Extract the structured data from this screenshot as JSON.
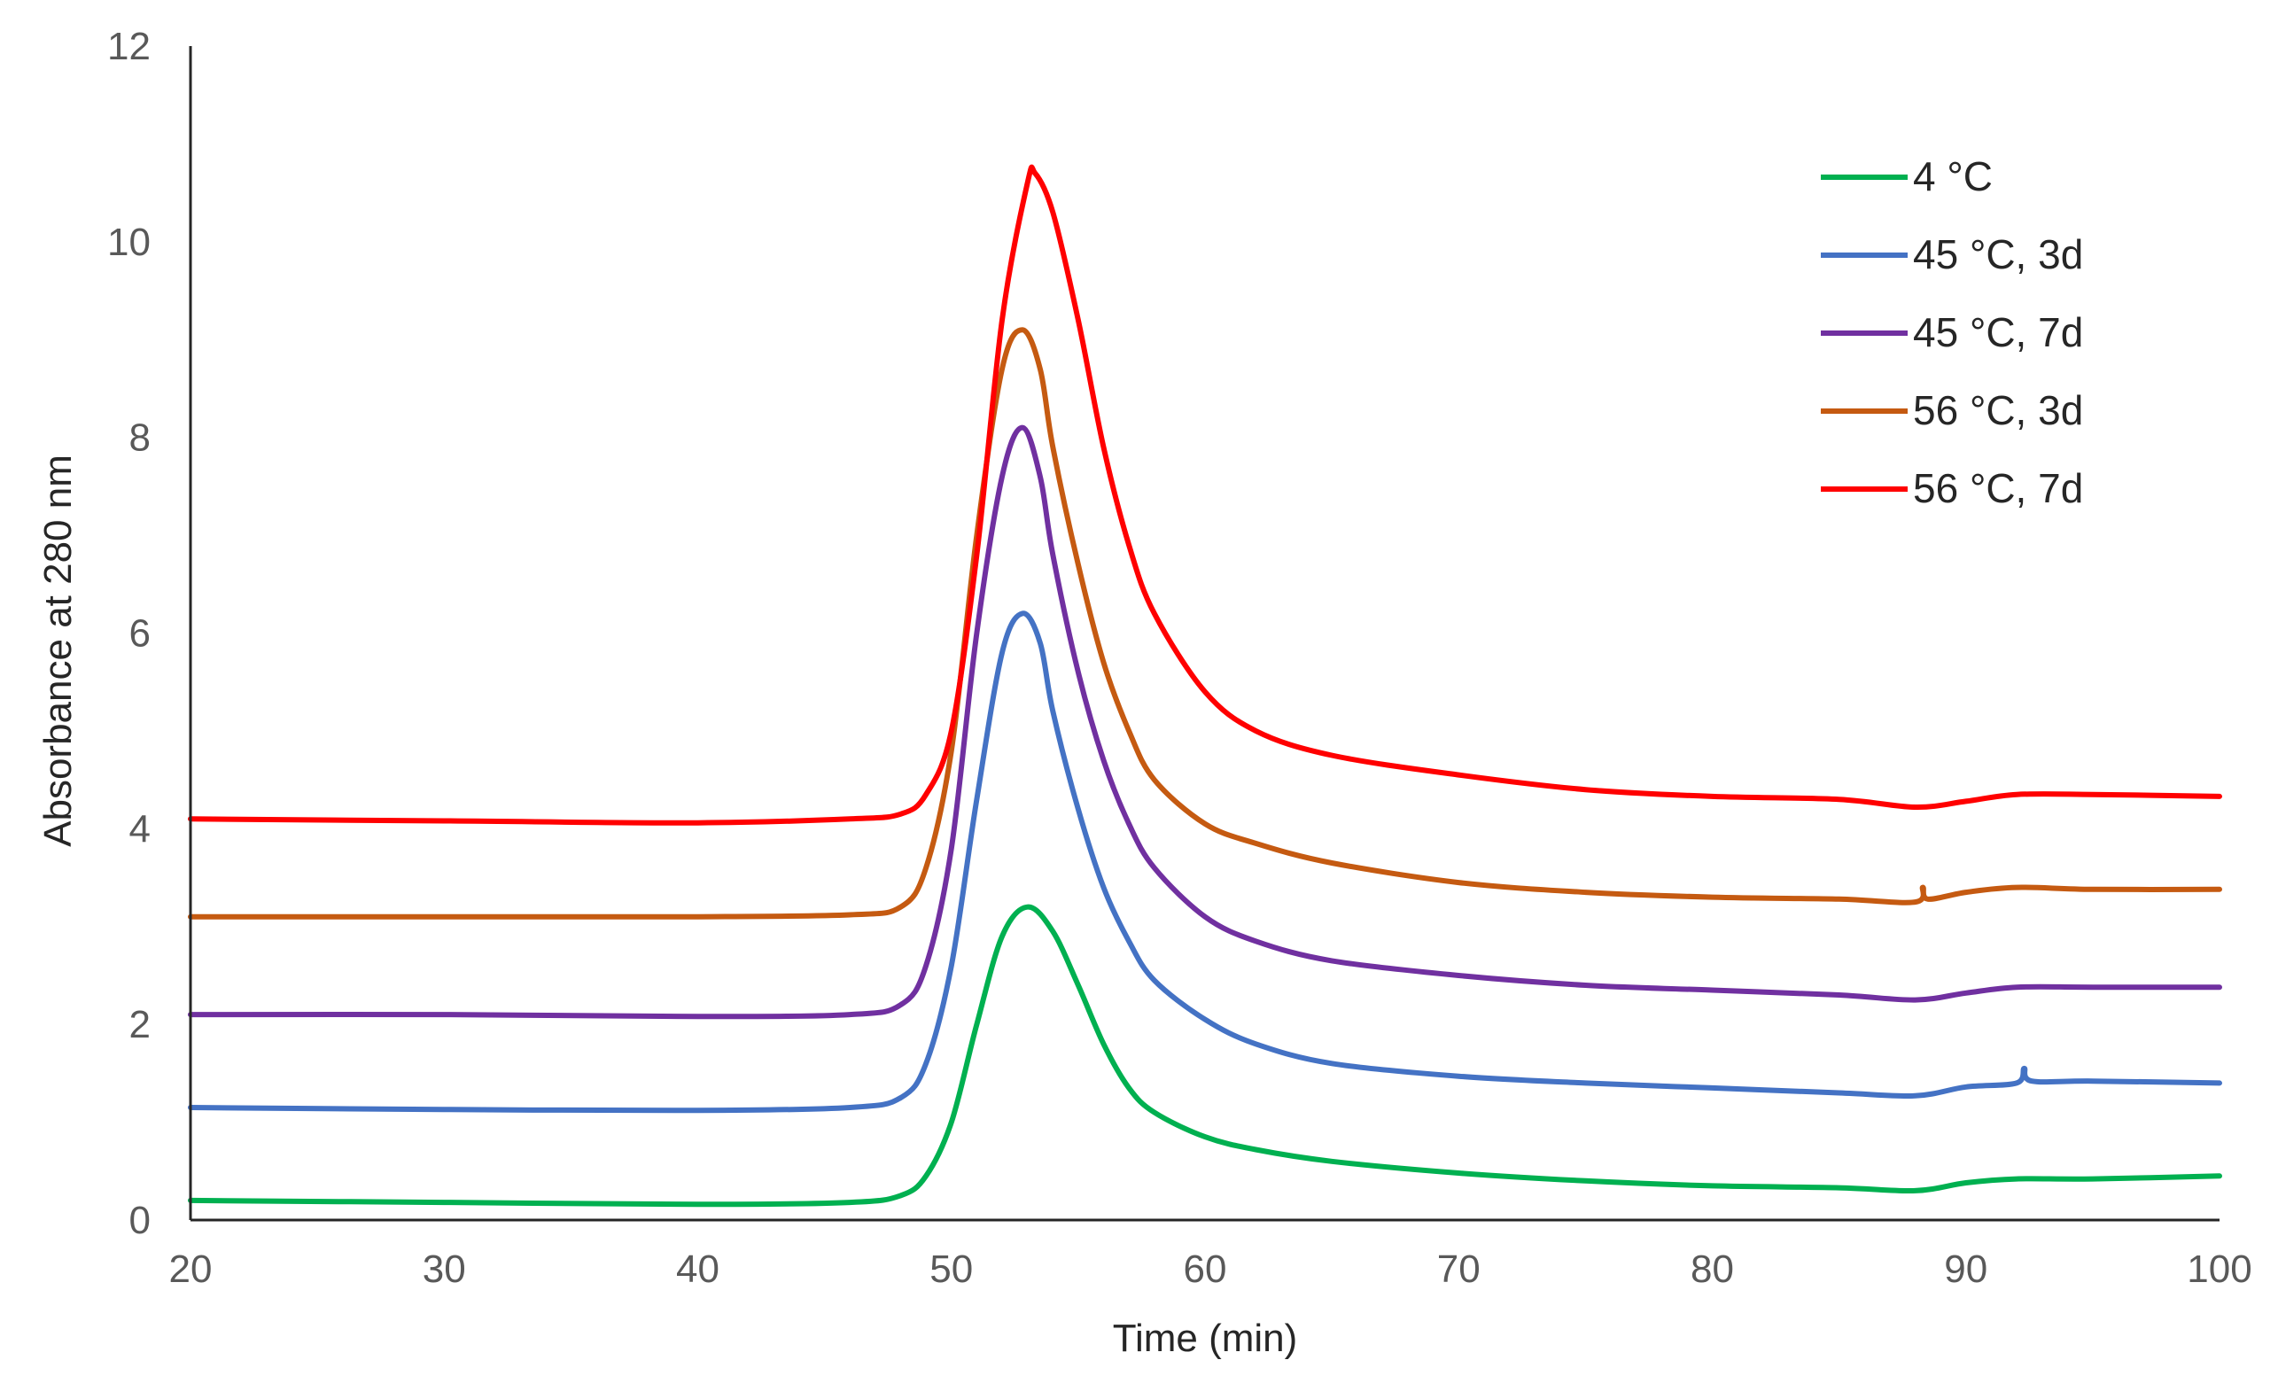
{
  "chart_data": {
    "type": "line",
    "title": "",
    "xlabel": "Time (min)",
    "ylabel": "Absorbance at 280 nm",
    "xlim": [
      20,
      100
    ],
    "ylim": [
      0,
      12
    ],
    "xticks": [
      20,
      30,
      40,
      50,
      60,
      70,
      80,
      90,
      100
    ],
    "yticks": [
      0,
      2,
      4,
      6,
      8,
      10,
      12
    ],
    "xtick_labels": [
      "20",
      "30",
      "40",
      "50",
      "60",
      "70",
      "80",
      "90",
      "100"
    ],
    "ytick_labels": [
      "0",
      "2",
      "4",
      "6",
      "8",
      "10",
      "12"
    ],
    "grid": false,
    "legend_position": "top-right",
    "series": [
      {
        "name": "4 °C",
        "color": "#00b050",
        "x": [
          20,
          30,
          40,
          46,
          48,
          49,
          50,
          51,
          52,
          53,
          54,
          55,
          56,
          57,
          58,
          60,
          62,
          65,
          70,
          75,
          80,
          85,
          88,
          90,
          92,
          95,
          100
        ],
        "y": [
          0.2,
          0.18,
          0.16,
          0.18,
          0.25,
          0.45,
          1.0,
          2.0,
          2.9,
          3.2,
          2.95,
          2.4,
          1.8,
          1.35,
          1.1,
          0.85,
          0.72,
          0.6,
          0.48,
          0.4,
          0.35,
          0.33,
          0.3,
          0.38,
          0.42,
          0.42,
          0.45
        ]
      },
      {
        "name": "45 °C, 3d",
        "color": "#4472c4",
        "x": [
          20,
          30,
          40,
          46,
          48,
          49,
          50,
          51,
          52,
          52.8,
          53.5,
          54,
          55,
          56,
          57,
          58,
          60,
          62,
          65,
          70,
          75,
          80,
          85,
          88,
          90,
          92,
          92.3,
          92.6,
          95,
          100
        ],
        "y": [
          1.15,
          1.13,
          1.12,
          1.15,
          1.25,
          1.6,
          2.6,
          4.3,
          5.8,
          6.2,
          5.9,
          5.2,
          4.2,
          3.4,
          2.85,
          2.45,
          2.05,
          1.8,
          1.6,
          1.47,
          1.4,
          1.35,
          1.3,
          1.27,
          1.36,
          1.4,
          1.55,
          1.42,
          1.42,
          1.4
        ]
      },
      {
        "name": "45 °C, 7d",
        "color": "#7030a0",
        "x": [
          20,
          30,
          40,
          46,
          48,
          49,
          50,
          51,
          52,
          52.8,
          53.5,
          54,
          55,
          56,
          57,
          58,
          60,
          62,
          65,
          70,
          75,
          80,
          85,
          88,
          90,
          92,
          95,
          100
        ],
        "y": [
          2.1,
          2.1,
          2.08,
          2.1,
          2.2,
          2.6,
          3.8,
          6.0,
          7.6,
          8.1,
          7.6,
          6.8,
          5.6,
          4.7,
          4.05,
          3.6,
          3.1,
          2.85,
          2.65,
          2.5,
          2.4,
          2.35,
          2.3,
          2.25,
          2.32,
          2.38,
          2.38,
          2.38
        ]
      },
      {
        "name": "56 °C, 3d",
        "color": "#c55a11",
        "x": [
          20,
          30,
          40,
          46,
          48,
          49,
          50,
          51,
          52,
          52.8,
          53.5,
          54,
          55,
          56,
          57,
          58,
          60,
          62,
          65,
          70,
          75,
          80,
          85,
          88,
          88.3,
          88.5,
          90,
          92,
          95,
          100
        ],
        "y": [
          3.1,
          3.1,
          3.1,
          3.12,
          3.2,
          3.6,
          4.8,
          7.0,
          8.7,
          9.1,
          8.7,
          7.9,
          6.7,
          5.7,
          5.0,
          4.5,
          4.05,
          3.85,
          3.65,
          3.45,
          3.35,
          3.3,
          3.28,
          3.25,
          3.4,
          3.28,
          3.35,
          3.4,
          3.38,
          3.38
        ]
      },
      {
        "name": "56 °C, 7d",
        "color": "#ff0000",
        "x": [
          20,
          30,
          40,
          46,
          48,
          49,
          50,
          51,
          52,
          53,
          53.3,
          54,
          55,
          56,
          57,
          58,
          60,
          62,
          65,
          70,
          75,
          80,
          85,
          88,
          90,
          92,
          95,
          100
        ],
        "y": [
          4.1,
          4.08,
          4.06,
          4.1,
          4.15,
          4.35,
          5.0,
          6.8,
          9.2,
          10.6,
          10.7,
          10.3,
          9.2,
          7.9,
          6.9,
          6.2,
          5.4,
          5.0,
          4.75,
          4.55,
          4.4,
          4.33,
          4.3,
          4.22,
          4.28,
          4.35,
          4.35,
          4.33
        ]
      }
    ]
  }
}
